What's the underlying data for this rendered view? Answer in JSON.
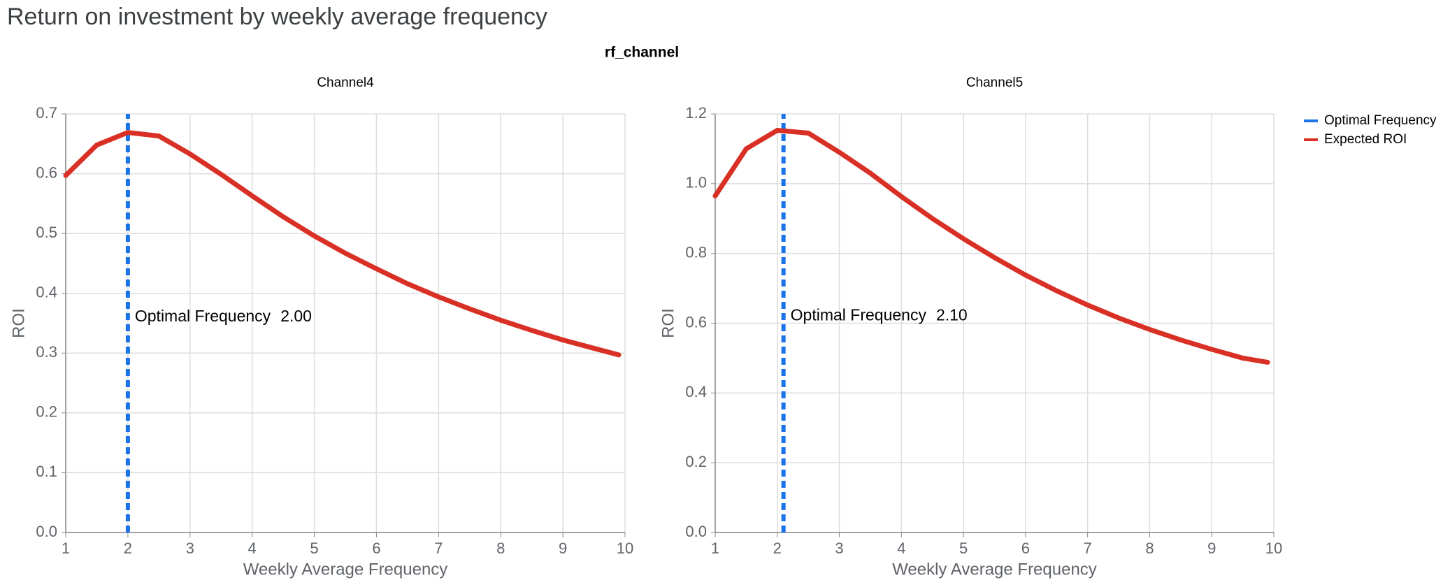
{
  "title": "Return on investment by weekly average frequency",
  "facet_label": "rf_channel",
  "chart_data": [
    {
      "type": "line",
      "title": "Channel4",
      "x_label": "Weekly Average Frequency",
      "y_label": "ROI",
      "xlim": [
        1,
        10
      ],
      "xticks": [
        1,
        2,
        3,
        4,
        5,
        6,
        7,
        8,
        9,
        10
      ],
      "ylim": [
        0,
        0.7
      ],
      "yticks": [
        {
          "value": 0,
          "label": "0.0"
        },
        0.1,
        0.2,
        0.3,
        0.4,
        0.5,
        0.6,
        0.7
      ],
      "grid": true,
      "x": [
        1,
        1.5,
        2,
        2.5,
        3,
        3.5,
        4,
        4.5,
        5,
        5.5,
        6,
        6.5,
        7,
        7.5,
        8,
        8.5,
        9,
        9.5,
        9.9
      ],
      "series": [
        {
          "name": "Optimal Frequency",
          "color": "#1a73e8",
          "dashed": true,
          "x": [
            2,
            2
          ],
          "values": [
            0,
            0.7
          ]
        },
        {
          "name": "Expected ROI",
          "color": "#d93025",
          "values": [
            0.597,
            0.648,
            0.669,
            0.663,
            0.633,
            0.599,
            0.563,
            0.528,
            0.496,
            0.467,
            0.441,
            0.416,
            0.394,
            0.374,
            0.355,
            0.338,
            0.322,
            0.308,
            0.297
          ]
        }
      ],
      "annotation": {
        "text": "Optimal Frequency",
        "value_label": "2.00",
        "y": 0.36
      }
    },
    {
      "type": "line",
      "title": "Channel5",
      "x_label": "Weekly Average Frequency",
      "y_label": "ROI",
      "xlim": [
        1,
        10
      ],
      "xticks": [
        1,
        2,
        3,
        4,
        5,
        6,
        7,
        8,
        9,
        10
      ],
      "ylim": [
        0,
        1.2
      ],
      "yticks": [
        {
          "value": 0,
          "label": "0.0"
        },
        0.2,
        0.4,
        0.6,
        0.8,
        {
          "value": 1,
          "label": "1.0"
        },
        1.2
      ],
      "grid": true,
      "x": [
        1,
        1.5,
        2,
        2.5,
        3,
        3.5,
        4,
        4.5,
        5,
        5.5,
        6,
        6.5,
        7,
        7.5,
        8,
        8.5,
        9,
        9.5,
        9.9
      ],
      "series": [
        {
          "name": "Optimal Frequency",
          "color": "#1a73e8",
          "dashed": true,
          "x": [
            2.1,
            2.1
          ],
          "values": [
            0,
            1.2
          ]
        },
        {
          "name": "Expected ROI",
          "color": "#d93025",
          "values": [
            0.965,
            1.1,
            1.153,
            1.145,
            1.09,
            1.03,
            0.963,
            0.9,
            0.842,
            0.788,
            0.738,
            0.693,
            0.652,
            0.615,
            0.582,
            0.552,
            0.525,
            0.5,
            0.488
          ]
        }
      ],
      "annotation": {
        "text": "Optimal Frequency",
        "value_label": "2.10",
        "y": 0.62
      }
    }
  ]
}
